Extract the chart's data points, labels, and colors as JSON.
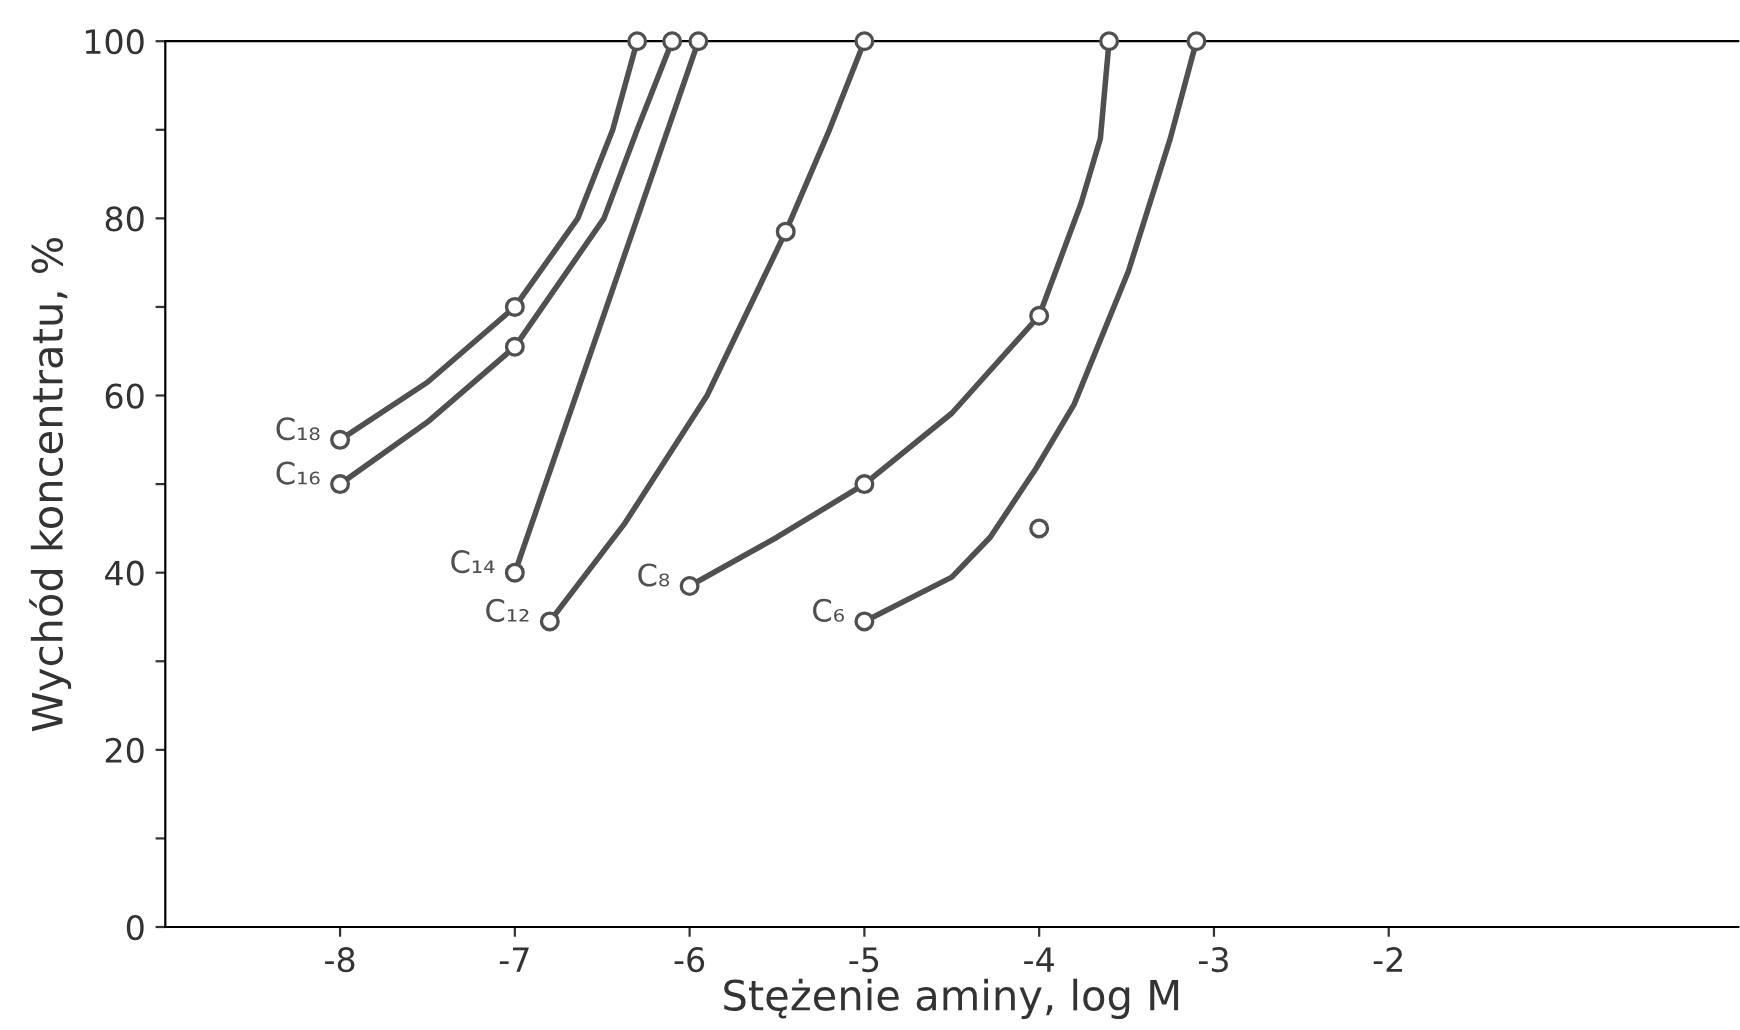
{
  "chart_data": {
    "type": "line",
    "xlabel": "Stężenie aminy, log M",
    "ylabel": "Wychód koncentratu, %",
    "xlim": [
      -9,
      0
    ],
    "ylim": [
      0,
      100
    ],
    "xticks": [
      -8,
      -7,
      -6,
      -5,
      -4,
      -3,
      -2
    ],
    "yticks": [
      0,
      {
        "value": 10,
        "label": null
      },
      20,
      {
        "value": 30,
        "label": null
      },
      40,
      {
        "value": 50,
        "label": null
      },
      60,
      {
        "value": 70,
        "label": null
      },
      80,
      {
        "value": 90,
        "label": null
      },
      100
    ],
    "line_style": "solid",
    "grid": false,
    "legend": false,
    "series": [
      {
        "name": "C₁₈",
        "color": "#505050",
        "marker": "none",
        "x": [
          -8,
          -7.5,
          -7,
          -6.64,
          -6.44,
          -6.3
        ],
        "values": [
          55,
          61.5,
          70,
          80,
          90,
          100
        ]
      },
      {
        "name": "C₁₆",
        "color": "#505050",
        "marker": "none",
        "x": [
          -8,
          -7.5,
          -7,
          -6.49,
          -6.3,
          -6.1
        ],
        "values": [
          50,
          57,
          65.5,
          80,
          90,
          100
        ]
      },
      {
        "name": "C₁₄",
        "color": "#505050",
        "marker": "none",
        "x": [
          -7,
          -5.95
        ],
        "values": [
          40,
          100
        ]
      },
      {
        "name": "C₁₂",
        "color": "#505050",
        "marker": "none",
        "x": [
          -6.8,
          -6.37,
          -5.9,
          -5.45,
          -5.2,
          -5
        ],
        "values": [
          34.5,
          45.6,
          60,
          78.5,
          90,
          100
        ]
      },
      {
        "name": "C₈",
        "color": "#505050",
        "marker": "none",
        "x": [
          -6,
          -5.5,
          -5,
          -4.5,
          -4,
          -3.76,
          -3.65,
          -3.6
        ],
        "values": [
          38.5,
          44,
          50,
          58,
          69,
          81.7,
          89,
          100
        ]
      },
      {
        "name": "C₆",
        "color": "#505050",
        "marker": "none",
        "x": [
          -5,
          -4.5,
          -4.28,
          -4.02,
          -3.8,
          -3.49,
          -3.25,
          -3.1
        ],
        "values": [
          34.5,
          39.5,
          44,
          51.7,
          59,
          74,
          89,
          100
        ]
      },
      {
        "type": "scatter",
        "color": "#505050",
        "marker": "circle",
        "x": [
          -8,
          -7,
          -6.3,
          -8,
          -7,
          -6.1,
          -7,
          -5.95,
          -6.8,
          -5.45,
          -5,
          -6,
          -5,
          -4,
          -3.6,
          -5,
          -4,
          -3.1
        ],
        "values": [
          55,
          70,
          100,
          50,
          65.5,
          100,
          40,
          100,
          34.5,
          78.5,
          100,
          38.5,
          50,
          69,
          100,
          34.5,
          45,
          100
        ]
      }
    ]
  }
}
